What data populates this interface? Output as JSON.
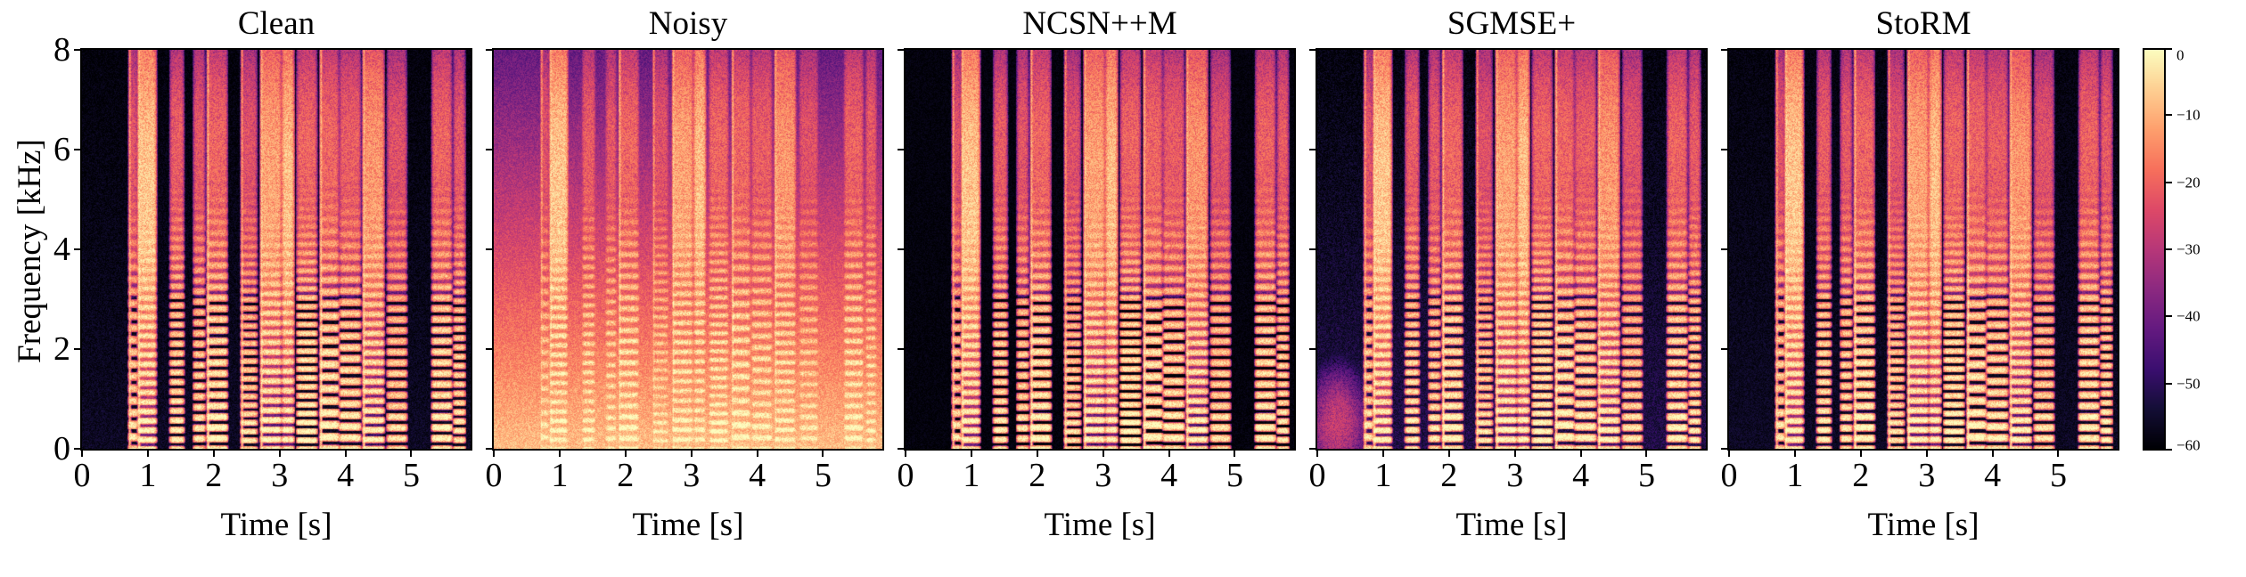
{
  "chart_data": {
    "type": "heatmap",
    "title": "",
    "description": "Five speech spectrograms (magma colormap, dB magnitude scale) comparing clean speech, noisy speech, and enhanced outputs of NCSN++M, SGMSE+ and StoRM",
    "panels": [
      {
        "title": "Clean"
      },
      {
        "title": "Noisy"
      },
      {
        "title": "NCSN++M"
      },
      {
        "title": "SGMSE+"
      },
      {
        "title": "StoRM"
      }
    ],
    "xlabel": "Time [s]",
    "ylabel": "Frequency [kHz]",
    "x_ticks": [
      0,
      1,
      2,
      3,
      4,
      5
    ],
    "y_ticks": [
      0,
      2,
      4,
      6,
      8
    ],
    "xlim": [
      0,
      5.9
    ],
    "ylim": [
      0,
      8
    ],
    "grid": false,
    "colormap": "magma",
    "colorbar": {
      "position": "right",
      "tick_labels": [
        "0",
        "−10",
        "−20",
        "−30",
        "−40",
        "−50",
        "−60"
      ],
      "max_db": 0,
      "min_db": -60
    }
  }
}
